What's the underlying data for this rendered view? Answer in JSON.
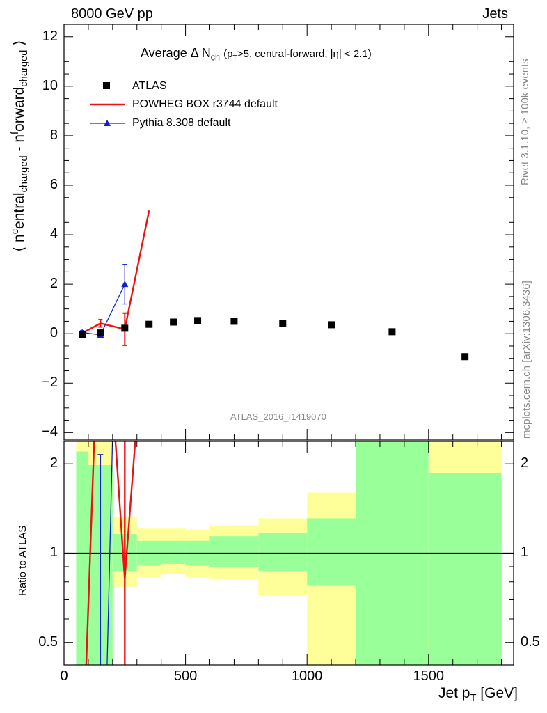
{
  "header": {
    "energy_label": "8000 GeV pp",
    "category_label": "Jets",
    "rivet_label": "Rivet 3.1.10, ≥ 100k events",
    "mcplots_label": "mcplots.cern.ch [arXiv:1306.3436]",
    "analysis_label": "ATLAS_2016_I1419070"
  },
  "colors": {
    "atlas": "#000000",
    "powheg": "#ee1111",
    "pythia": "#1122cc",
    "band_stat": "#99ff99",
    "band_total": "#ffff99",
    "watermark": "#888888"
  },
  "chart_data": [
    {
      "type": "scatter",
      "title": "Average Δ N_ch (p_T>5, central-forward, |η| < 2.1)",
      "title_parts": {
        "main": "Average Δ N",
        "sub": "ch",
        "cut_pre": "(p",
        "cut_sub": "T",
        "cut_post": ">5, central-forward, |η| < 2.1)"
      },
      "ylabel": "⟨ n^central_charged - n^forward_charged ⟩",
      "ylabel_parts": {
        "open": "⟨ n",
        "sup1": "c",
        "mid1": "entral",
        "sub1": "charged",
        "mid2": " - n",
        "sup2": "f",
        "mid3": "orward",
        "sub2": "charged",
        "close": "⟩"
      },
      "xlim": [
        0,
        1850
      ],
      "ylim": [
        -4.3,
        12.5
      ],
      "y_ticks": [
        -4,
        -2,
        0,
        2,
        4,
        6,
        8,
        10,
        12
      ],
      "y_tick_labels": [
        "−4",
        "−2",
        "0",
        "2",
        "4",
        "6",
        "8",
        "10",
        "12"
      ],
      "legend": {
        "placement": "top-left",
        "entries": [
          "ATLAS",
          "POWHEG BOX r3744 default",
          "Pythia 8.308 default"
        ]
      },
      "series": [
        {
          "name": "ATLAS",
          "style": "marker-square",
          "x": [
            75,
            150,
            250,
            350,
            450,
            550,
            700,
            900,
            1100,
            1350,
            1650
          ],
          "y": [
            -0.05,
            0.03,
            0.22,
            0.38,
            0.47,
            0.53,
            0.5,
            0.4,
            0.36,
            0.08,
            -0.93
          ]
        },
        {
          "name": "POWHEG BOX r3744 default",
          "style": "line",
          "x": [
            75,
            150,
            250,
            350
          ],
          "y": [
            0.02,
            0.42,
            0.18,
            4.98
          ],
          "err": [
            0.05,
            0.15,
            0.65,
            0
          ]
        },
        {
          "name": "Pythia 8.308 default",
          "style": "line-triangle",
          "x": [
            75,
            150,
            250
          ],
          "y": [
            0.05,
            -0.05,
            2.0
          ],
          "err": [
            0.08,
            0.1,
            0.8
          ]
        }
      ]
    },
    {
      "type": "line",
      "ylabel": "Ratio to ATLAS",
      "xlabel": "Jet p_T [GeV]",
      "xlabel_parts": {
        "pre": "Jet p",
        "sub": "T",
        "post": " [GeV]"
      },
      "xlim": [
        0,
        1850
      ],
      "ylim": [
        0.42,
        2.38
      ],
      "x_ticks": [
        0,
        500,
        1000,
        1500
      ],
      "x_tick_labels": [
        "0",
        "500",
        "1000",
        "1500"
      ],
      "y_ticks": [
        0.5,
        1,
        2
      ],
      "y_tick_labels": [
        "0.5",
        "1",
        "2"
      ],
      "bands": [
        {
          "x0": 50,
          "x1": 100,
          "stat": [
            0,
            2.2
          ],
          "total": [
            0,
            2.4
          ]
        },
        {
          "x0": 100,
          "x1": 200,
          "stat": [
            0,
            1.98
          ],
          "total": [
            0,
            2.4
          ]
        },
        {
          "x0": 200,
          "x1": 300,
          "stat": [
            0.87,
            1.16
          ],
          "total": [
            0.77,
            1.33
          ]
        },
        {
          "x0": 300,
          "x1": 400,
          "stat": [
            0.91,
            1.1
          ],
          "total": [
            0.83,
            1.21
          ]
        },
        {
          "x0": 400,
          "x1": 500,
          "stat": [
            0.92,
            1.1
          ],
          "total": [
            0.85,
            1.21
          ]
        },
        {
          "x0": 500,
          "x1": 600,
          "stat": [
            0.91,
            1.1
          ],
          "total": [
            0.83,
            1.2
          ]
        },
        {
          "x0": 600,
          "x1": 800,
          "stat": [
            0.9,
            1.14
          ],
          "total": [
            0.82,
            1.24
          ]
        },
        {
          "x0": 800,
          "x1": 1000,
          "stat": [
            0.87,
            1.17
          ],
          "total": [
            0.72,
            1.31
          ]
        },
        {
          "x0": 1000,
          "x1": 1200,
          "stat": [
            0.78,
            1.31
          ],
          "total": [
            0,
            1.6
          ]
        },
        {
          "x0": 1200,
          "x1": 1500,
          "stat": [
            0,
            2.4
          ],
          "total": [
            0,
            2.4
          ]
        },
        {
          "x0": 1500,
          "x1": 1800,
          "stat": [
            0,
            1.86
          ],
          "total": [
            0,
            2.4
          ]
        }
      ],
      "series": [
        {
          "name": "POWHEG BOX r3744 default",
          "x": [
            85,
            125,
            210,
            250,
            295
          ],
          "y": [
            0.3,
            2.5,
            2.5,
            0.82,
            2.5
          ]
        },
        {
          "name": "Pythia 8.308 default",
          "x": [
            175,
            200
          ],
          "y": [
            0.35,
            2.5
          ]
        }
      ]
    }
  ]
}
